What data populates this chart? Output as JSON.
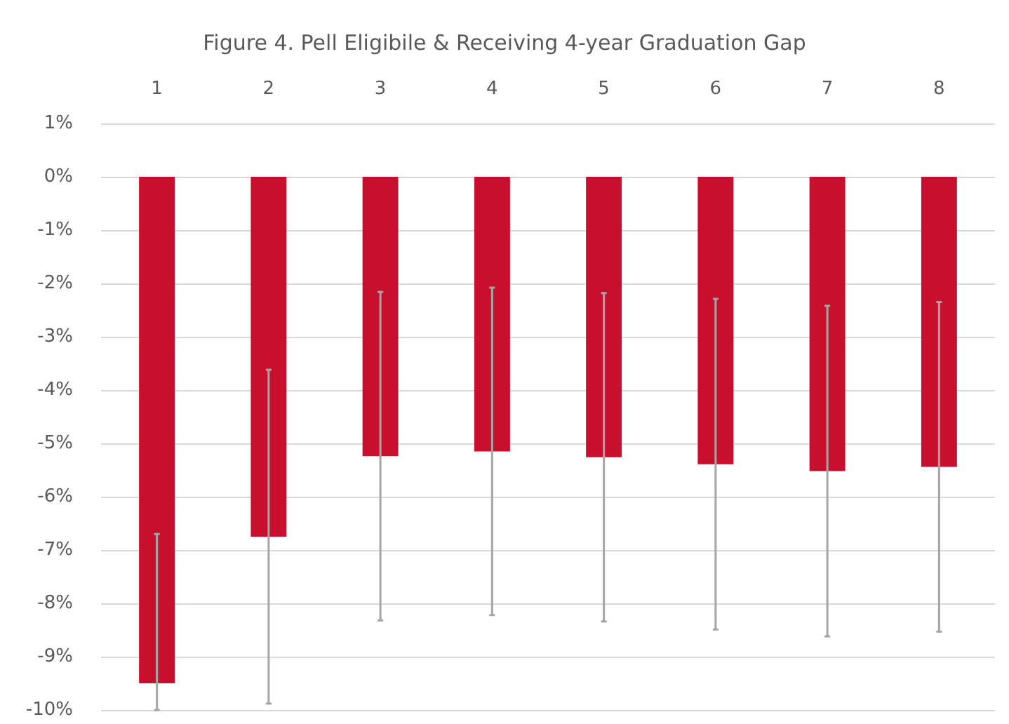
{
  "chart_data": {
    "type": "bar",
    "title": "Figure 4. Pell Eligibile & Receiving 4-year Graduation Gap",
    "categories": [
      "1",
      "2",
      "3",
      "4",
      "5",
      "6",
      "7",
      "8"
    ],
    "values": [
      -9.5,
      -6.75,
      -5.24,
      -5.15,
      -5.26,
      -5.39,
      -5.52,
      -5.44
    ],
    "errors": [
      [
        -10.0,
        -6.7
      ],
      3.13,
      3.08,
      3.07,
      3.08,
      3.1,
      3.1,
      3.09
    ],
    "color": "#c8102e",
    "ylim": [
      -10,
      1
    ],
    "yticks": [
      {
        "value": 1,
        "label": "1%"
      },
      {
        "value": 0,
        "label": "0%"
      },
      {
        "value": -1,
        "label": "-1%"
      },
      {
        "value": -2,
        "label": "-2%"
      },
      {
        "value": -3,
        "label": "-3%"
      },
      {
        "value": -4,
        "label": "-4%"
      },
      {
        "value": -5,
        "label": "-5%"
      },
      {
        "value": -6,
        "label": "-6%"
      },
      {
        "value": -7,
        "label": "-7%"
      },
      {
        "value": -8,
        "label": "-8%"
      },
      {
        "value": -9,
        "label": "-9%"
      },
      {
        "value": -10,
        "label": "-10%"
      }
    ],
    "grid": "y"
  }
}
